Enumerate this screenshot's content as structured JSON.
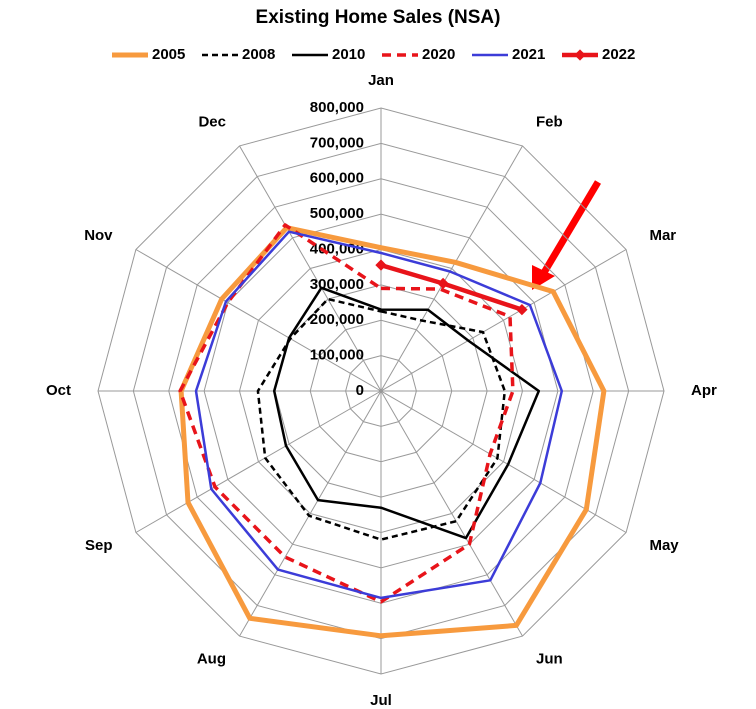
{
  "chart_data": {
    "type": "radar",
    "title": "Existing Home Sales (NSA)",
    "categories": [
      "Jan",
      "Feb",
      "Mar",
      "Apr",
      "May",
      "Jun",
      "Jul",
      "Aug",
      "Sep",
      "Oct",
      "Nov",
      "Dec"
    ],
    "ylim": [
      0,
      800000
    ],
    "yticks": [
      0,
      {
        "value": 100000,
        "label": "100,000"
      },
      {
        "value": 200000,
        "label": "200,000"
      },
      {
        "value": 300000,
        "label": "300,000"
      },
      {
        "value": 400000,
        "label": "400,000"
      },
      {
        "value": 500000,
        "label": "500,000"
      },
      {
        "value": 600000,
        "label": "600,000"
      },
      {
        "value": 700000,
        "label": "700,000"
      },
      {
        "value": 800000,
        "label": "800,000"
      }
    ],
    "grid": true,
    "legend": "top",
    "series": [
      {
        "name": "2005",
        "color": "#f79a3e",
        "width": 5,
        "dash": "none",
        "values": [
          405000,
          420000,
          562000,
          630000,
          670000,
          765000,
          692000,
          742000,
          630000,
          565000,
          520000,
          533000
        ]
      },
      {
        "name": "2008",
        "color": "#000000",
        "width": 2.5,
        "dash": "6 4",
        "values": [
          225000,
          230000,
          333000,
          350000,
          380000,
          425000,
          420000,
          407000,
          378000,
          348000,
          296000,
          300000
        ]
      },
      {
        "name": "2010",
        "color": "#000000",
        "width": 2.5,
        "dash": "none",
        "values": [
          230000,
          265000,
          285000,
          446000,
          415000,
          480000,
          330000,
          356000,
          310000,
          302000,
          300000,
          337000
        ]
      },
      {
        "name": "2020",
        "color": "#e8141a",
        "width": 3.5,
        "dash": "9 6",
        "values": [
          290000,
          333000,
          421000,
          373000,
          356000,
          500000,
          596000,
          542000,
          542000,
          568000,
          500000,
          542000
        ]
      },
      {
        "name": "2021",
        "color": "#3c3cd8",
        "width": 2.5,
        "dash": "none",
        "values": [
          390000,
          390000,
          486000,
          511000,
          520000,
          618000,
          585000,
          583000,
          554000,
          523000,
          506000,
          520000
        ]
      },
      {
        "name": "2022",
        "color": "#e8141a",
        "width": 4.5,
        "dash": "none",
        "markers": true,
        "values": [
          356000,
          351000,
          460000,
          null,
          null,
          null,
          null,
          null,
          null,
          null,
          null,
          null
        ]
      }
    ]
  }
}
